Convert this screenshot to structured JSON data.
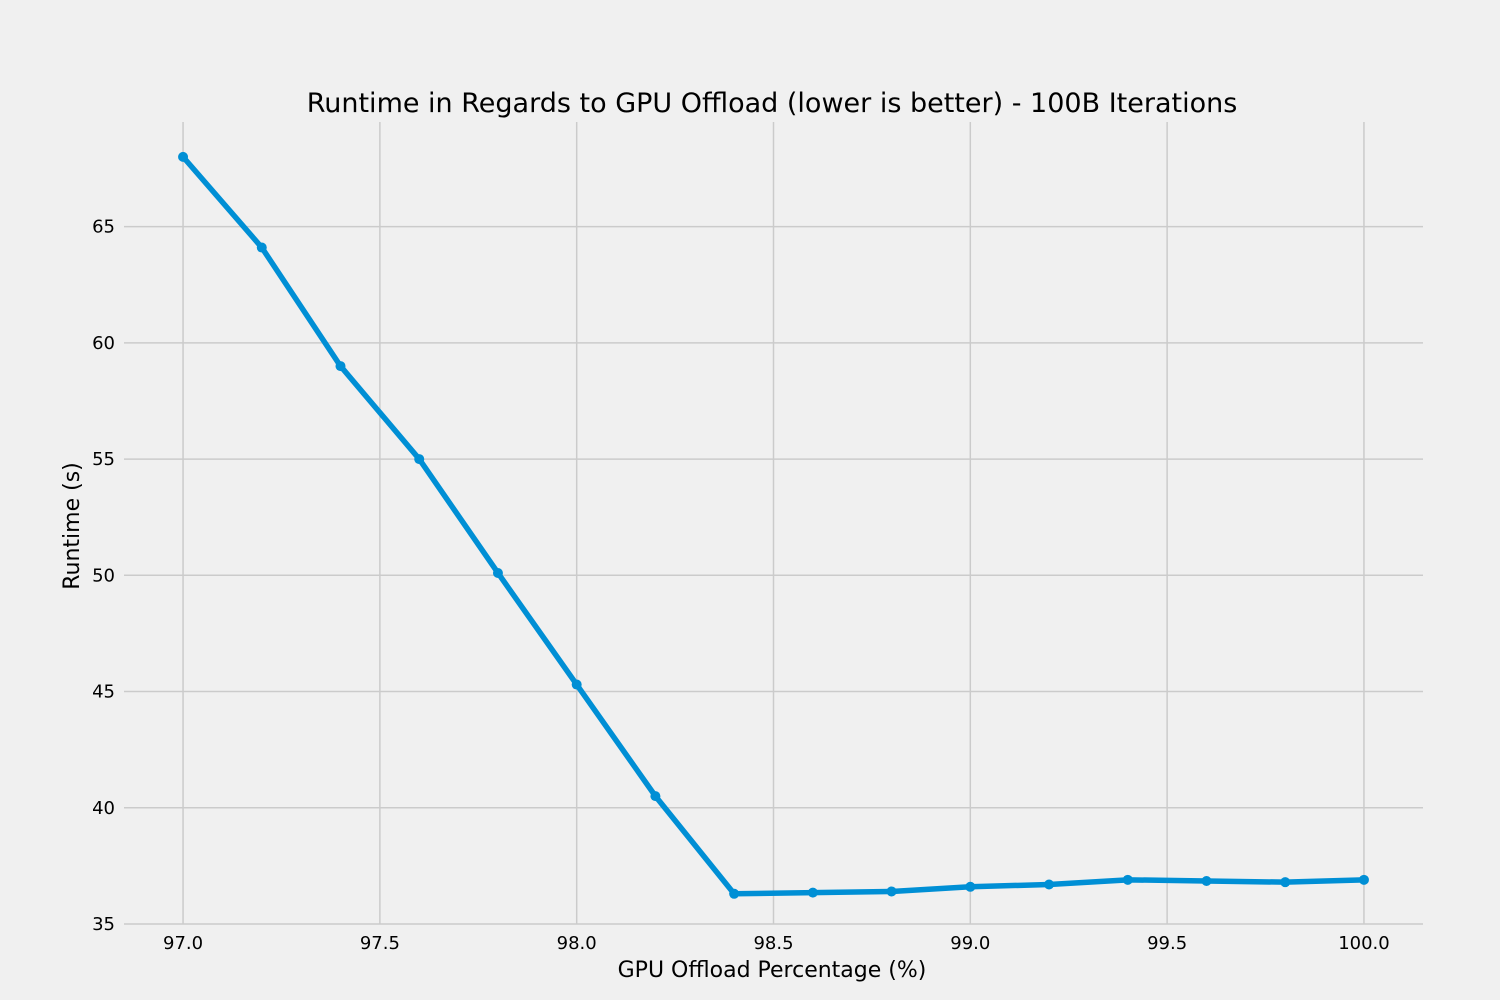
{
  "chart_data": {
    "type": "line",
    "title": "Runtime in Regards to GPU Offload (lower is better) - 100B Iterations",
    "xlabel": "GPU Offload Percentage (%)",
    "ylabel": "Runtime (s)",
    "x": [
      97.0,
      97.2,
      97.4,
      97.6,
      97.8,
      98.0,
      98.2,
      98.4,
      98.6,
      98.8,
      99.0,
      99.2,
      99.4,
      99.6,
      99.8,
      100.0
    ],
    "series": [
      {
        "values": [
          68.0,
          64.1,
          59.0,
          55.0,
          50.1,
          45.3,
          40.5,
          36.3,
          36.35,
          36.4,
          36.6,
          36.7,
          36.9,
          36.85,
          36.8,
          36.9
        ]
      }
    ],
    "xticks": [
      97.0,
      97.5,
      98.0,
      98.5,
      99.0,
      99.5,
      100.0
    ],
    "xtick_labels": [
      "97.0",
      "97.5",
      "98.0",
      "98.5",
      "99.0",
      "99.5",
      "100.0"
    ],
    "yticks": [
      35,
      40,
      45,
      50,
      55,
      60,
      65
    ],
    "ytick_labels": [
      "35",
      "40",
      "45",
      "50",
      "55",
      "60",
      "65"
    ],
    "xlim": [
      96.85,
      100.15
    ],
    "ylim": [
      35.0,
      69.5
    ],
    "grid": true,
    "legend": "none",
    "colors": {
      "line": "#008fd5",
      "background": "#f0f0f0",
      "grid": "#cbcbcb"
    }
  }
}
